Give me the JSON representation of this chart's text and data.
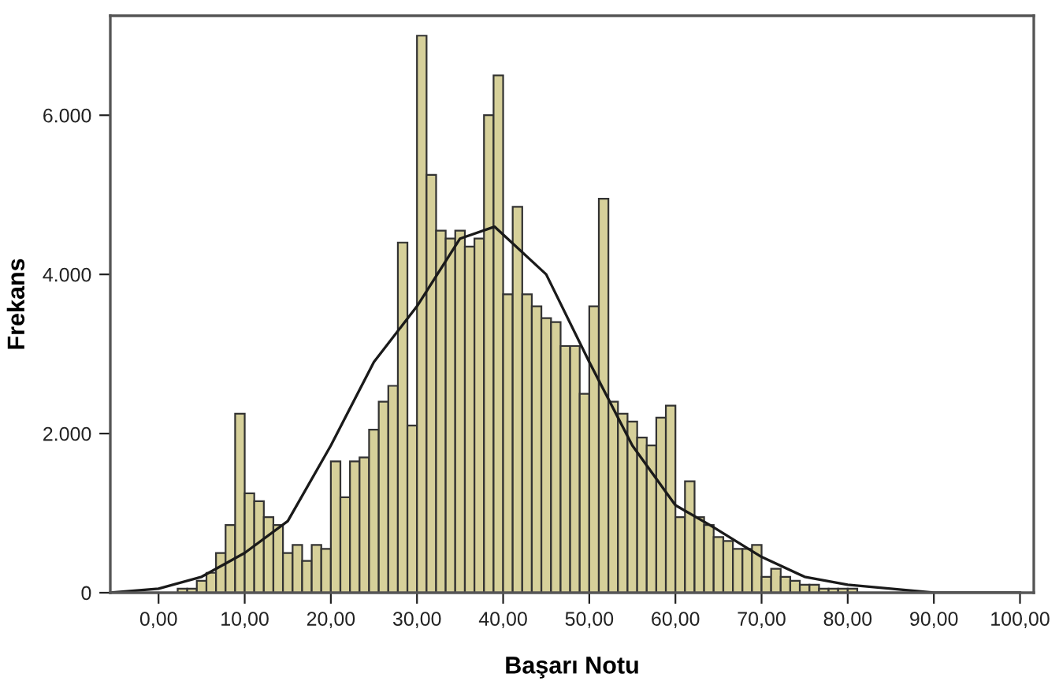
{
  "chart_data": {
    "type": "histogram",
    "xlabel": "Başarı Notu",
    "ylabel": "Frekans",
    "bins": [
      2.22,
      3.33,
      4.44,
      5.56,
      6.67,
      7.78,
      8.89,
      10.0,
      11.11,
      12.22,
      13.33,
      14.44,
      15.56,
      16.67,
      17.78,
      18.89,
      20.0,
      21.11,
      22.22,
      23.33,
      24.44,
      25.56,
      26.67,
      27.78,
      28.89,
      30.0,
      31.11,
      32.22,
      33.33,
      34.44,
      35.56,
      36.67,
      37.78,
      38.89,
      40.0,
      41.11,
      42.22,
      43.33,
      44.44,
      45.56,
      46.67,
      47.78,
      48.89,
      50.0,
      51.11,
      52.22,
      53.33,
      54.44,
      55.56,
      56.67,
      57.78,
      58.89,
      60.0,
      61.11,
      62.22,
      63.33,
      64.44,
      65.56,
      66.67,
      67.78,
      68.89,
      70.0,
      71.11,
      72.22,
      73.33,
      74.44,
      75.56,
      76.67,
      77.78,
      78.89,
      80.0,
      81.11
    ],
    "values": [
      50,
      50,
      150,
      250,
      500,
      850,
      2250,
      1250,
      1150,
      950,
      850,
      500,
      600,
      400,
      600,
      550,
      1650,
      1200,
      1650,
      1700,
      2050,
      2400,
      2600,
      4400,
      2100,
      7000,
      5250,
      4550,
      4450,
      4550,
      4350,
      4450,
      6000,
      6500,
      3750,
      4850,
      3750,
      3600,
      3450,
      3400,
      3100,
      3100,
      2500,
      3600,
      4950,
      2400,
      2250,
      2150,
      1950,
      1850,
      2200,
      2350,
      950,
      1400,
      950,
      850,
      700,
      650,
      550,
      550,
      600,
      200,
      300,
      200,
      150,
      100,
      100,
      50,
      50,
      50,
      50
    ],
    "color": "#d6d09a",
    "series": [
      {
        "type": "line",
        "color": "#1a1a1a",
        "x": [
          -5.6,
          0,
          5,
          10,
          15,
          20,
          25,
          30,
          35,
          39,
          45,
          50,
          55,
          60,
          64,
          70,
          75,
          80,
          85,
          90,
          100
        ],
        "values": [
          0,
          50,
          200,
          500,
          900,
          1850,
          2900,
          3600,
          4450,
          4600,
          4000,
          2900,
          1850,
          1100,
          850,
          450,
          200,
          100,
          50,
          0,
          0
        ]
      }
    ],
    "xlim": [
      -5.6,
      101.6
    ],
    "ylim": [
      0,
      7250
    ],
    "xticks": [
      {
        "value": 0,
        "label": "0,00"
      },
      {
        "value": 10,
        "label": "10,00"
      },
      {
        "value": 20,
        "label": "20,00"
      },
      {
        "value": 30,
        "label": "30,00"
      },
      {
        "value": 40,
        "label": "40,00"
      },
      {
        "value": 50,
        "label": "50,00"
      },
      {
        "value": 60,
        "label": "60,00"
      },
      {
        "value": 70,
        "label": "70,00"
      },
      {
        "value": 80,
        "label": "80,00"
      },
      {
        "value": 90,
        "label": "90,00"
      },
      {
        "value": 100,
        "label": "100,00"
      }
    ],
    "yticks": [
      0,
      {
        "value": 2000,
        "label": "2.000"
      },
      {
        "value": 4000,
        "label": "4.000"
      },
      {
        "value": 6000,
        "label": "6.000"
      }
    ],
    "grid": false,
    "legend": false
  }
}
